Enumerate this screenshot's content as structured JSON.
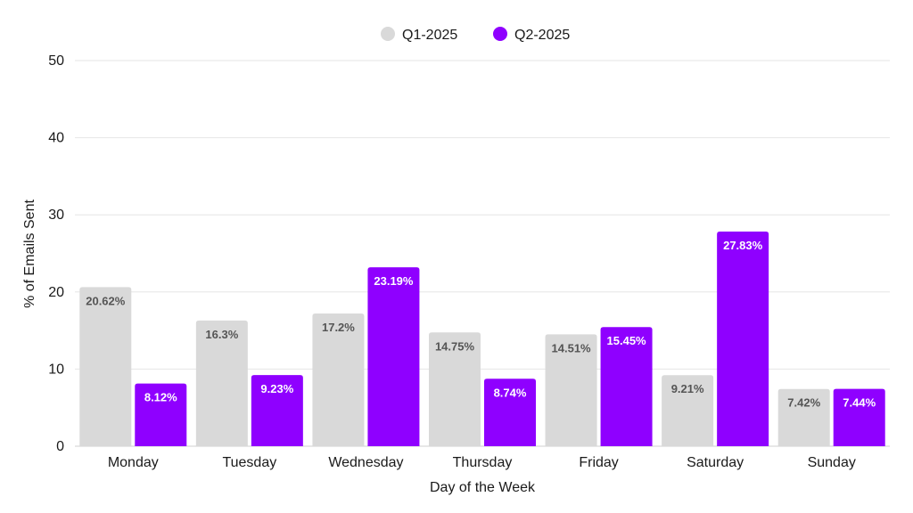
{
  "chart_data": {
    "type": "bar",
    "title": "",
    "xlabel": "Day of the Week",
    "ylabel": "% of Emails Sent",
    "ylim": [
      0,
      50
    ],
    "yticks": [
      0,
      10,
      20,
      30,
      40,
      50
    ],
    "grid": true,
    "legend_position": "top-center",
    "categories": [
      "Monday",
      "Tuesday",
      "Wednesday",
      "Thursday",
      "Friday",
      "Saturday",
      "Sunday"
    ],
    "series": [
      {
        "name": "Q1-2025",
        "color": "#d9d9d9",
        "label_color": "#555555",
        "values": [
          20.62,
          16.3,
          17.2,
          14.75,
          14.51,
          9.21,
          7.42
        ],
        "labels": [
          "20.62%",
          "16.3%",
          "17.2%",
          "14.75%",
          "14.51%",
          "9.21%",
          "7.42%"
        ]
      },
      {
        "name": "Q2-2025",
        "color": "#8f00ff",
        "label_color": "#ffffff",
        "values": [
          8.12,
          9.23,
          23.19,
          8.74,
          15.45,
          27.83,
          7.44
        ],
        "labels": [
          "8.12%",
          "9.23%",
          "23.19%",
          "8.74%",
          "15.45%",
          "27.83%",
          "7.44%"
        ]
      }
    ]
  }
}
